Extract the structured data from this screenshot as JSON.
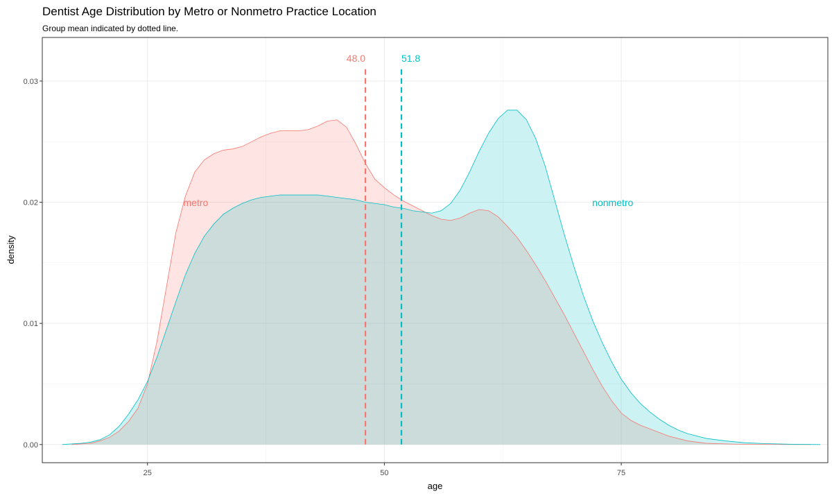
{
  "chart_data": {
    "type": "area",
    "title": "Dentist Age Distribution by Metro or Nonmetro Practice Location",
    "subtitle": "Group mean indicated by dotted line.",
    "xlabel": "age",
    "ylabel": "density",
    "xlim": [
      13.9,
      96.8
    ],
    "ylim": [
      -0.0015,
      0.0336
    ],
    "x_ticks": [
      25,
      50,
      75
    ],
    "y_ticks": [
      0.0,
      0.01,
      0.02,
      0.03
    ],
    "y_tick_labels": [
      "0.00",
      "0.01",
      "0.02",
      "0.03"
    ],
    "grid": true,
    "series": [
      {
        "name": "metro",
        "color": "#F8766D",
        "mean": 48.0,
        "mean_label": "48.0",
        "label_at": [
          30.1,
          0.0197
        ],
        "points": [
          [
            17,
            0
          ],
          [
            19,
            0.0001
          ],
          [
            20,
            0.0003
          ],
          [
            21,
            0.0006
          ],
          [
            22,
            0.0011
          ],
          [
            23,
            0.0019
          ],
          [
            24,
            0.003
          ],
          [
            25,
            0.005
          ],
          [
            26,
            0.0085
          ],
          [
            27,
            0.013
          ],
          [
            28,
            0.0175
          ],
          [
            29,
            0.0205
          ],
          [
            30,
            0.0225
          ],
          [
            31,
            0.0235
          ],
          [
            32,
            0.024
          ],
          [
            33,
            0.0243
          ],
          [
            34,
            0.0244
          ],
          [
            35,
            0.0246
          ],
          [
            36,
            0.025
          ],
          [
            37,
            0.0254
          ],
          [
            38,
            0.0257
          ],
          [
            39,
            0.0259
          ],
          [
            40,
            0.0259
          ],
          [
            41,
            0.0259
          ],
          [
            42,
            0.026
          ],
          [
            43,
            0.0263
          ],
          [
            44,
            0.0267
          ],
          [
            45,
            0.0268
          ],
          [
            46,
            0.0262
          ],
          [
            47,
            0.0248
          ],
          [
            48,
            0.0232
          ],
          [
            49,
            0.0219
          ],
          [
            50,
            0.0212
          ],
          [
            51,
            0.0206
          ],
          [
            52,
            0.0201
          ],
          [
            53,
            0.0197
          ],
          [
            54,
            0.0193
          ],
          [
            55,
            0.0189
          ],
          [
            56,
            0.0186
          ],
          [
            57,
            0.0185
          ],
          [
            58,
            0.0187
          ],
          [
            59,
            0.0191
          ],
          [
            60,
            0.0194
          ],
          [
            61,
            0.0193
          ],
          [
            62,
            0.0188
          ],
          [
            63,
            0.018
          ],
          [
            64,
            0.0171
          ],
          [
            65,
            0.016
          ],
          [
            66,
            0.0148
          ],
          [
            67,
            0.0135
          ],
          [
            68,
            0.0121
          ],
          [
            69,
            0.0107
          ],
          [
            70,
            0.0092
          ],
          [
            71,
            0.0077
          ],
          [
            72,
            0.0062
          ],
          [
            73,
            0.0048
          ],
          [
            74,
            0.0036
          ],
          [
            75,
            0.0026
          ],
          [
            76,
            0.002
          ],
          [
            77,
            0.0016
          ],
          [
            78,
            0.0013
          ],
          [
            79,
            0.001
          ],
          [
            80,
            0.0007
          ],
          [
            82,
            0.0003
          ],
          [
            84,
            0.0001
          ],
          [
            87,
            3e-05
          ],
          [
            90,
            1e-05
          ],
          [
            95,
            0
          ]
        ]
      },
      {
        "name": "nonmetro",
        "color": "#00BFC4",
        "mean": 51.8,
        "mean_label": "51.8",
        "label_at": [
          74.1,
          0.0197
        ],
        "points": [
          [
            16,
            0
          ],
          [
            18,
            0.0001
          ],
          [
            19,
            0.0002
          ],
          [
            20,
            0.0004
          ],
          [
            21,
            0.0008
          ],
          [
            22,
            0.0015
          ],
          [
            23,
            0.0025
          ],
          [
            24,
            0.0037
          ],
          [
            25,
            0.0052
          ],
          [
            26,
            0.0072
          ],
          [
            27,
            0.0095
          ],
          [
            28,
            0.0118
          ],
          [
            29,
            0.014
          ],
          [
            30,
            0.0158
          ],
          [
            31,
            0.0172
          ],
          [
            32,
            0.0182
          ],
          [
            33,
            0.019
          ],
          [
            34,
            0.0195
          ],
          [
            35,
            0.0199
          ],
          [
            36,
            0.0202
          ],
          [
            37,
            0.0204
          ],
          [
            38,
            0.0205
          ],
          [
            39,
            0.0206
          ],
          [
            40,
            0.0206
          ],
          [
            41,
            0.0206
          ],
          [
            42,
            0.0206
          ],
          [
            43,
            0.0206
          ],
          [
            44,
            0.0205
          ],
          [
            45,
            0.0204
          ],
          [
            46,
            0.0203
          ],
          [
            47,
            0.0202
          ],
          [
            48,
            0.02
          ],
          [
            49,
            0.0199
          ],
          [
            50,
            0.0198
          ],
          [
            51,
            0.0196
          ],
          [
            52,
            0.0195
          ],
          [
            53,
            0.0193
          ],
          [
            54,
            0.0192
          ],
          [
            55,
            0.0191
          ],
          [
            56,
            0.0193
          ],
          [
            57,
            0.0199
          ],
          [
            58,
            0.021
          ],
          [
            59,
            0.0225
          ],
          [
            60,
            0.0242
          ],
          [
            61,
            0.0257
          ],
          [
            62,
            0.0269
          ],
          [
            63,
            0.0276
          ],
          [
            64,
            0.0276
          ],
          [
            65,
            0.0268
          ],
          [
            66,
            0.0252
          ],
          [
            67,
            0.0229
          ],
          [
            68,
            0.0201
          ],
          [
            69,
            0.0173
          ],
          [
            70,
            0.0147
          ],
          [
            71,
            0.0123
          ],
          [
            72,
            0.0102
          ],
          [
            73,
            0.0084
          ],
          [
            74,
            0.0068
          ],
          [
            75,
            0.0054
          ],
          [
            76,
            0.0043
          ],
          [
            77,
            0.0034
          ],
          [
            78,
            0.0027
          ],
          [
            79,
            0.0021
          ],
          [
            80,
            0.0016
          ],
          [
            81,
            0.0012
          ],
          [
            82,
            0.0009
          ],
          [
            84,
            0.0005
          ],
          [
            86,
            0.0003
          ],
          [
            88,
            0.00015
          ],
          [
            90,
            8e-05
          ],
          [
            93,
            2e-05
          ],
          [
            96,
            0
          ]
        ]
      }
    ]
  }
}
